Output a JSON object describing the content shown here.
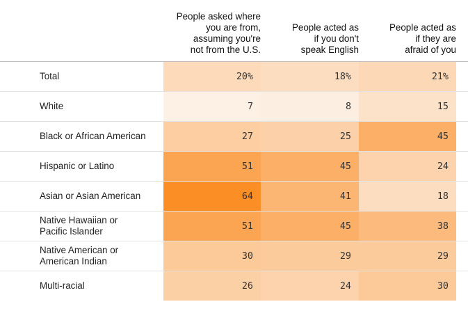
{
  "chart_data": {
    "type": "table",
    "columns": [
      "People asked where\nyou are from,\nassuming you're\nnot from the U.S.",
      "People acted as\nif you don't\nspeak English",
      "People acted as\nif they are\nafraid of you"
    ],
    "rows": [
      {
        "label": "Total",
        "values": [
          "20%",
          "18%",
          "21%"
        ],
        "numbers": [
          20,
          18,
          21
        ]
      },
      {
        "label": "White",
        "values": [
          "7",
          "8",
          "15"
        ],
        "numbers": [
          7,
          8,
          15
        ]
      },
      {
        "label": "Black or African American",
        "values": [
          "27",
          "25",
          "45"
        ],
        "numbers": [
          27,
          25,
          45
        ]
      },
      {
        "label": "Hispanic or Latino",
        "values": [
          "51",
          "45",
          "24"
        ],
        "numbers": [
          51,
          45,
          24
        ]
      },
      {
        "label": "Asian or Asian American",
        "values": [
          "64",
          "41",
          "18"
        ],
        "numbers": [
          64,
          41,
          18
        ]
      },
      {
        "label": "Native Hawaiian or\nPacific Islander",
        "values": [
          "51",
          "45",
          "38"
        ],
        "numbers": [
          51,
          45,
          38
        ]
      },
      {
        "label": "Native American or\nAmerican Indian",
        "values": [
          "30",
          "29",
          "29"
        ],
        "numbers": [
          30,
          29,
          29
        ]
      },
      {
        "label": "Multi-racial",
        "values": [
          "26",
          "24",
          "30"
        ],
        "numbers": [
          26,
          24,
          30
        ]
      }
    ],
    "color_low": "#fdf0e5",
    "color_high": "#fb8f26",
    "value_range": [
      7,
      64
    ]
  }
}
